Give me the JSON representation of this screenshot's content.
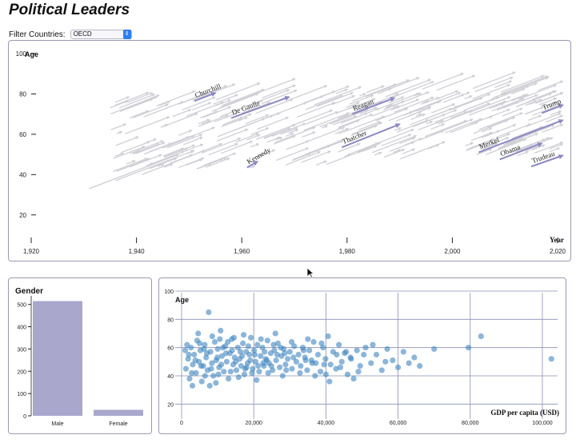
{
  "page": {
    "title": "Political Leaders"
  },
  "filter": {
    "label": "Filter Countries:",
    "value": "OECD"
  },
  "chart_data": [
    {
      "type": "line",
      "title": "",
      "xlabel": "Year",
      "ylabel": "Age",
      "xlim": [
        1920,
        2020
      ],
      "ylim": [
        10,
        100
      ],
      "x_ticks": [
        "1,920",
        "1,940",
        "1,960",
        "1,980",
        "2,000",
        "2,020"
      ],
      "y_ticks": [
        "20",
        "40",
        "60",
        "80",
        "100"
      ],
      "highlight_color": "#8c89c4",
      "background_color": "#cfcfd6",
      "highlighted": [
        {
          "name": "Churchill",
          "start": [
            1951,
            76.5
          ],
          "end": [
            1955,
            80.5
          ]
        },
        {
          "name": "De Gaulle",
          "start": [
            1958,
            68
          ],
          "end": [
            1969,
            78.5
          ]
        },
        {
          "name": "Kennedy",
          "start": [
            1961,
            43.5
          ],
          "end": [
            1963,
            46.5
          ]
        },
        {
          "name": "Reagan",
          "start": [
            1981,
            70
          ],
          "end": [
            1989,
            78
          ]
        },
        {
          "name": "Thatcher",
          "start": [
            1979,
            53.5
          ],
          "end": [
            1990,
            65
          ]
        },
        {
          "name": "Merkel",
          "start": [
            2005,
            51
          ],
          "end": [
            2021,
            67
          ]
        },
        {
          "name": "Obama",
          "start": [
            2009,
            47.5
          ],
          "end": [
            2017,
            55.5
          ]
        },
        {
          "name": "Trudeau",
          "start": [
            2015,
            44
          ],
          "end": [
            2021,
            49.5
          ]
        },
        {
          "name": "Trump",
          "start": [
            2017,
            70.5
          ],
          "end": [
            2021,
            74.5
          ]
        }
      ]
    },
    {
      "type": "bar",
      "title": "Gender",
      "categories": [
        "Male",
        "Female"
      ],
      "values": [
        515,
        27
      ],
      "ylim": [
        0,
        560
      ],
      "y_ticks": [
        "0",
        "100",
        "200",
        "300",
        "400",
        "500"
      ],
      "color": "#a9a7cc"
    },
    {
      "type": "scatter",
      "title": "",
      "xlabel": "GDP per capita (USD)",
      "ylabel": "Age",
      "xlim": [
        0,
        104000
      ],
      "ylim": [
        10,
        100
      ],
      "x_ticks": [
        "0",
        "20,000",
        "40,000",
        "60,000",
        "80,000",
        "100,000"
      ],
      "y_ticks": [
        "20",
        "40",
        "60",
        "80",
        "100"
      ],
      "color": "#3f86bf",
      "points": [
        [
          1200,
          45
        ],
        [
          1800,
          52
        ],
        [
          2200,
          38
        ],
        [
          2600,
          60
        ],
        [
          3100,
          48
        ],
        [
          3500,
          55
        ],
        [
          4000,
          42
        ],
        [
          4300,
          65
        ],
        [
          4800,
          50
        ],
        [
          5200,
          58
        ],
        [
          5600,
          36
        ],
        [
          6000,
          47
        ],
        [
          6400,
          62
        ],
        [
          6800,
          53
        ],
        [
          7200,
          44
        ],
        [
          7500,
          85
        ],
        [
          8000,
          57
        ],
        [
          8400,
          49
        ],
        [
          8800,
          40
        ],
        [
          9200,
          64
        ],
        [
          9600,
          51
        ],
        [
          10000,
          59
        ],
        [
          10400,
          46
        ],
        [
          10800,
          72
        ],
        [
          11200,
          54
        ],
        [
          11700,
          43
        ],
        [
          12100,
          61
        ],
        [
          12500,
          50
        ],
        [
          13000,
          38
        ],
        [
          13400,
          56
        ],
        [
          13900,
          66
        ],
        [
          14300,
          48
        ],
        [
          14700,
          53
        ],
        [
          15200,
          44
        ],
        [
          15600,
          60
        ],
        [
          16100,
          52
        ],
        [
          16500,
          47
        ],
        [
          17000,
          63
        ],
        [
          17400,
          41
        ],
        [
          17900,
          57
        ],
        [
          18300,
          49
        ],
        [
          18800,
          55
        ],
        [
          19200,
          67
        ],
        [
          19700,
          45
        ],
        [
          20100,
          58
        ],
        [
          20500,
          50
        ],
        [
          21000,
          62
        ],
        [
          21500,
          43
        ],
        [
          21900,
          54
        ],
        [
          22400,
          60
        ],
        [
          22800,
          47
        ],
        [
          23300,
          52
        ],
        [
          23800,
          65
        ],
        [
          24200,
          49
        ],
        [
          24700,
          56
        ],
        [
          25200,
          44
        ],
        [
          25700,
          58
        ],
        [
          26200,
          51
        ],
        [
          26700,
          63
        ],
        [
          27200,
          46
        ],
        [
          27700,
          54
        ],
        [
          28300,
          59
        ],
        [
          28800,
          48
        ],
        [
          29400,
          52
        ],
        [
          30000,
          57
        ],
        [
          30600,
          45
        ],
        [
          31200,
          61
        ],
        [
          31800,
          50
        ],
        [
          32400,
          55
        ],
        [
          33000,
          47
        ],
        [
          33600,
          60
        ],
        [
          34200,
          53
        ],
        [
          34800,
          44
        ],
        [
          35400,
          58
        ],
        [
          36000,
          51
        ],
        [
          36600,
          64
        ],
        [
          37200,
          49
        ],
        [
          37800,
          55
        ],
        [
          38500,
          43
        ],
        [
          39200,
          60
        ],
        [
          39900,
          52
        ],
        [
          40600,
          68
        ],
        [
          41300,
          48
        ],
        [
          42000,
          57
        ],
        [
          42800,
          45
        ],
        [
          43600,
          62
        ],
        [
          44400,
          50
        ],
        [
          45200,
          56
        ],
        [
          46000,
          41
        ],
        [
          46800,
          53
        ],
        [
          47700,
          38
        ],
        [
          48600,
          58
        ],
        [
          49500,
          47
        ],
        [
          51000,
          60
        ],
        [
          52500,
          49
        ],
        [
          54000,
          55
        ],
        [
          55500,
          44
        ],
        [
          57000,
          59
        ],
        [
          58500,
          51
        ],
        [
          60000,
          46
        ],
        [
          61500,
          57
        ],
        [
          63000,
          49
        ],
        [
          64500,
          53
        ],
        [
          66000,
          47
        ],
        [
          70000,
          59
        ],
        [
          79500,
          60
        ],
        [
          83000,
          68
        ],
        [
          102500,
          52
        ],
        [
          2000,
          55
        ],
        [
          3000,
          33
        ],
        [
          5000,
          63
        ],
        [
          6500,
          40
        ],
        [
          8500,
          68
        ],
        [
          9500,
          35
        ],
        [
          11000,
          48
        ],
        [
          12800,
          64
        ],
        [
          14000,
          58
        ],
        [
          15800,
          39
        ],
        [
          17200,
          69
        ],
        [
          18500,
          61
        ],
        [
          20800,
          37
        ],
        [
          22000,
          66
        ],
        [
          24000,
          42
        ],
        [
          26000,
          70
        ],
        [
          28000,
          40
        ],
        [
          30500,
          64
        ],
        [
          32800,
          42
        ],
        [
          35000,
          66
        ],
        [
          37000,
          40
        ],
        [
          41000,
          36
        ],
        [
          44000,
          46
        ],
        [
          47000,
          52
        ],
        [
          50500,
          55
        ],
        [
          53000,
          62
        ],
        [
          56500,
          50
        ],
        [
          1500,
          62
        ],
        [
          4600,
          70
        ],
        [
          7800,
          33
        ],
        [
          9900,
          53
        ],
        [
          12300,
          56
        ],
        [
          16800,
          54
        ],
        [
          19500,
          42
        ],
        [
          23000,
          57
        ],
        [
          27500,
          60
        ],
        [
          31000,
          53
        ],
        [
          36200,
          49
        ],
        [
          38800,
          63
        ],
        [
          43000,
          55
        ],
        [
          2800,
          42
        ],
        [
          5400,
          47
        ],
        [
          7000,
          56
        ],
        [
          10600,
          66
        ],
        [
          13600,
          43
        ],
        [
          15000,
          50
        ],
        [
          17600,
          45
        ],
        [
          19000,
          51
        ],
        [
          21200,
          47
        ],
        [
          23600,
          51
        ],
        [
          25500,
          62
        ],
        [
          29000,
          44
        ],
        [
          33800,
          58
        ],
        [
          40000,
          41
        ],
        [
          45600,
          57
        ],
        [
          49000,
          43
        ],
        [
          1000,
          58
        ],
        [
          3800,
          51
        ],
        [
          6200,
          59
        ],
        [
          8200,
          45
        ],
        [
          10200,
          41
        ],
        [
          11500,
          60
        ],
        [
          14500,
          67
        ],
        [
          16300,
          57
        ],
        [
          18000,
          46
        ],
        [
          20300,
          55
        ],
        [
          22600,
          49
        ],
        [
          24900,
          47
        ],
        [
          26500,
          55
        ],
        [
          28600,
          56
        ],
        [
          34400,
          51
        ],
        [
          39500,
          48
        ]
      ]
    }
  ]
}
